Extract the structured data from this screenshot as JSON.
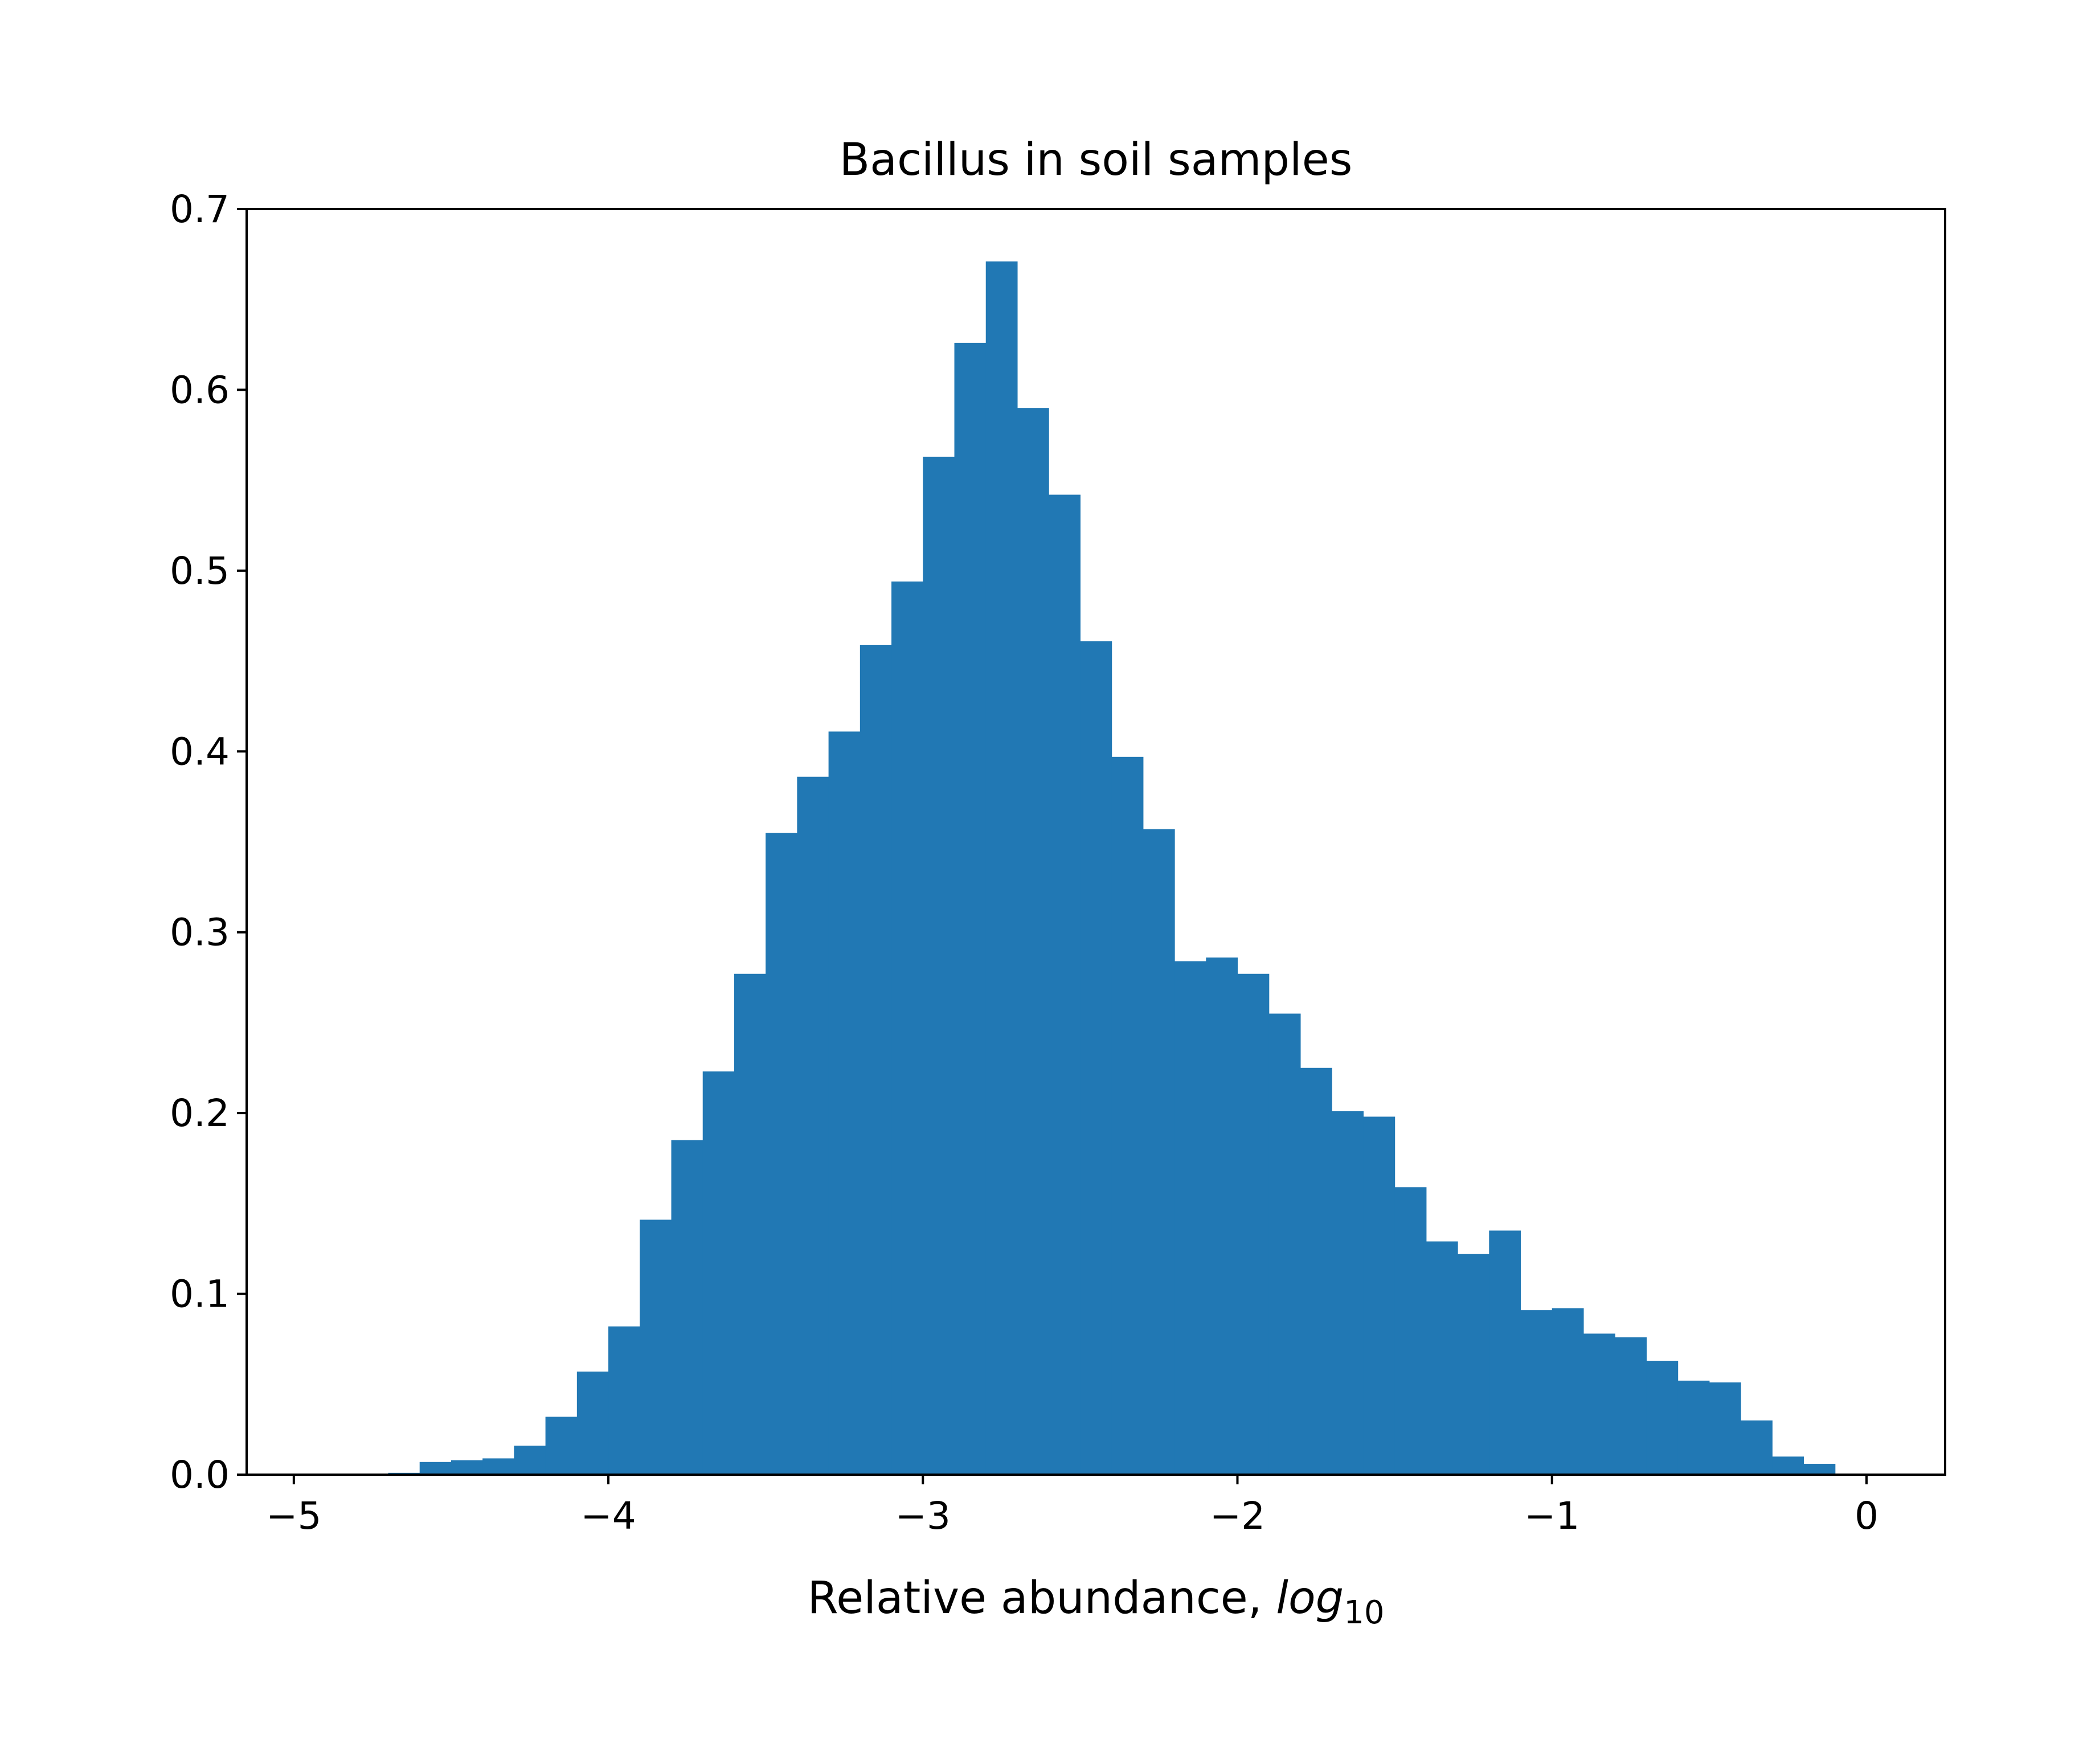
{
  "chart_data": {
    "type": "bar",
    "title": "Bacillus in soil samples",
    "xlabel_text": "Relative abundance, ",
    "xlabel_math_base": "log",
    "xlabel_math_sub": "10",
    "ylabel": "",
    "xlim": [
      -5.15,
      0.25
    ],
    "ylim": [
      0,
      0.7
    ],
    "xticks": [
      -5,
      -4,
      -3,
      -2,
      -1,
      0
    ],
    "xtick_labels": [
      "−5",
      "−4",
      "−3",
      "−2",
      "−1",
      "0"
    ],
    "yticks": [
      0.0,
      0.1,
      0.2,
      0.3,
      0.4,
      0.5,
      0.6,
      0.7
    ],
    "ytick_labels": [
      "0.0",
      "0.1",
      "0.2",
      "0.3",
      "0.4",
      "0.5",
      "0.6",
      "0.7"
    ],
    "grid": false,
    "bin_edges": [
      -5.0,
      -4.9,
      -4.8,
      -4.7,
      -4.6,
      -4.5,
      -4.4,
      -4.3,
      -4.2,
      -4.1,
      -4.0,
      -3.9,
      -3.8,
      -3.7,
      -3.6,
      -3.5,
      -3.4,
      -3.3,
      -3.2,
      -3.1,
      -3.0,
      -2.9,
      -2.8,
      -2.7,
      -2.6,
      -2.5,
      -2.4,
      -2.3,
      -2.2,
      -2.1,
      -2.0,
      -1.9,
      -1.8,
      -1.7,
      -1.6,
      -1.5,
      -1.4,
      -1.3,
      -1.2,
      -1.1,
      -1.0,
      -0.9,
      -0.8,
      -0.7,
      -0.6,
      -0.5,
      -0.4,
      -0.3,
      -0.2,
      -0.1,
      0.0
    ],
    "values": [
      0.0,
      0.0,
      0.0,
      0.001,
      0.007,
      0.008,
      0.009,
      0.016,
      0.032,
      0.057,
      0.082,
      0.141,
      0.185,
      0.223,
      0.277,
      0.355,
      0.386,
      0.411,
      0.459,
      0.494,
      0.563,
      0.626,
      0.671,
      0.59,
      0.542,
      0.461,
      0.397,
      0.357,
      0.284,
      0.286,
      0.277,
      0.255,
      0.225,
      0.201,
      0.198,
      0.159,
      0.129,
      0.122,
      0.135,
      0.091,
      0.092,
      0.078,
      0.076,
      0.063,
      0.052,
      0.051,
      0.03,
      0.01,
      0.006,
      0.0,
      0.007
    ],
    "colors": {
      "bar": "#2178b4",
      "axis": "#000000"
    }
  }
}
